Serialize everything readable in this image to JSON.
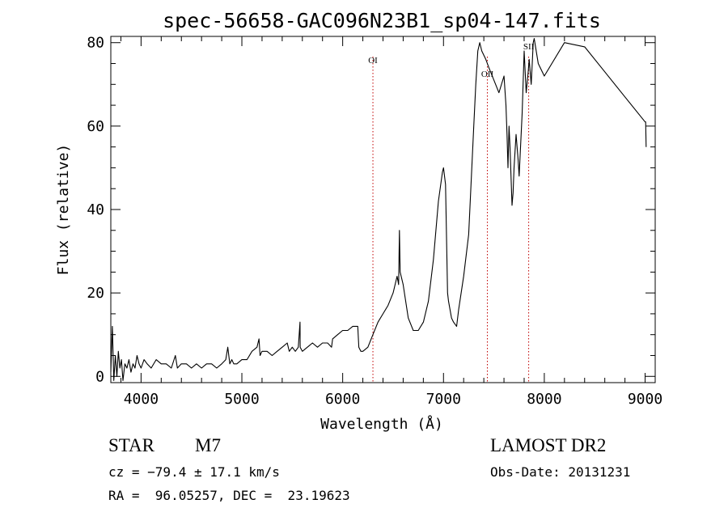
{
  "chart_data": {
    "type": "line",
    "title": "spec-56658-GAC096N23B1_sp04-147.fits",
    "xlabel": "Wavelength (Å)",
    "ylabel": "Flux (relative)",
    "xlim": [
      3700,
      9100
    ],
    "ylim": [
      -1.5,
      81.5
    ],
    "x_ticks": [
      4000,
      5000,
      6000,
      7000,
      8000,
      9000
    ],
    "y_ticks": [
      0,
      20,
      40,
      60,
      80
    ],
    "grid": false,
    "line_color": "#000000",
    "series": [
      {
        "x": [
          3700,
          3715,
          3730,
          3745,
          3760,
          3775,
          3790,
          3805,
          3820,
          3840,
          3860,
          3880,
          3900,
          3920,
          3940,
          3960,
          3980,
          4000,
          4030,
          4060,
          4100,
          4150,
          4200,
          4250,
          4300,
          4340,
          4360,
          4400,
          4450,
          4500,
          4550,
          4600,
          4650,
          4700,
          4750,
          4800,
          4840,
          4860,
          4880,
          4900,
          4920,
          4950,
          5000,
          5050,
          5100,
          5150,
          5170,
          5180,
          5200,
          5250,
          5300,
          5350,
          5400,
          5450,
          5470,
          5500,
          5530,
          5560,
          5577,
          5578,
          5600,
          5650,
          5700,
          5750,
          5800,
          5850,
          5890,
          5900,
          5950,
          6000,
          6050,
          6100,
          6150,
          6160,
          6180,
          6200,
          6250,
          6300,
          6350,
          6400,
          6450,
          6500,
          6540,
          6555,
          6563,
          6570,
          6600,
          6650,
          6700,
          6750,
          6800,
          6850,
          6900,
          6950,
          6990,
          7000,
          7020,
          7040,
          7050,
          7080,
          7100,
          7130,
          7150,
          7200,
          7250,
          7300,
          7320,
          7340,
          7360,
          7380,
          7420,
          7450,
          7500,
          7550,
          7600,
          7620,
          7630,
          7640,
          7650,
          7660,
          7680,
          7690,
          7700,
          7720,
          7740,
          7750,
          7780,
          7800,
          7820,
          7840,
          7850,
          7870,
          7880,
          7890,
          7900,
          7920,
          7940,
          8000,
          8200,
          8400,
          8600,
          8800,
          9000,
          9005,
          9010
        ],
        "y": [
          1,
          12,
          -1,
          5,
          0,
          6,
          2,
          4,
          -1,
          3,
          2,
          4,
          1,
          3,
          2,
          5,
          3,
          2,
          4,
          3,
          2,
          4,
          3,
          3,
          2,
          5,
          2,
          3,
          3,
          2,
          3,
          2,
          3,
          3,
          2,
          3,
          4,
          7,
          3,
          4,
          3,
          3,
          4,
          4,
          6,
          7,
          9,
          5,
          6,
          6,
          5,
          6,
          7,
          8,
          6,
          7,
          6,
          7,
          13,
          7,
          6,
          7,
          8,
          7,
          8,
          8,
          7,
          9,
          10,
          11,
          11,
          12,
          12,
          7,
          6,
          6,
          7,
          10,
          13,
          15,
          17,
          20,
          24,
          22,
          35,
          25,
          22,
          14,
          11,
          11,
          13,
          18,
          28,
          42,
          49,
          50,
          46,
          20,
          18,
          14,
          13,
          12,
          16,
          24,
          34,
          60,
          70,
          78,
          80,
          78,
          76,
          74,
          71,
          68,
          72,
          65,
          58,
          50,
          60,
          55,
          41,
          44,
          50,
          58,
          52,
          48,
          63,
          78,
          68,
          73,
          76,
          70,
          75,
          80,
          81,
          78,
          75,
          72,
          80,
          79,
          73,
          67,
          61,
          61,
          55
        ]
      }
    ],
    "annotations": [
      {
        "label": "OI",
        "x": 6300
      },
      {
        "label": "OII",
        "x": 7435
      },
      {
        "label": "SII",
        "x": 7845
      }
    ]
  },
  "info": {
    "object_class": "STAR",
    "subclass": "M7",
    "survey": "LAMOST DR2",
    "cz": "cz = −79.4 ± 17.1 km/s",
    "obs_date": "Obs-Date: 20131231",
    "coords": "RA =  96.05257, DEC =  23.19623"
  }
}
